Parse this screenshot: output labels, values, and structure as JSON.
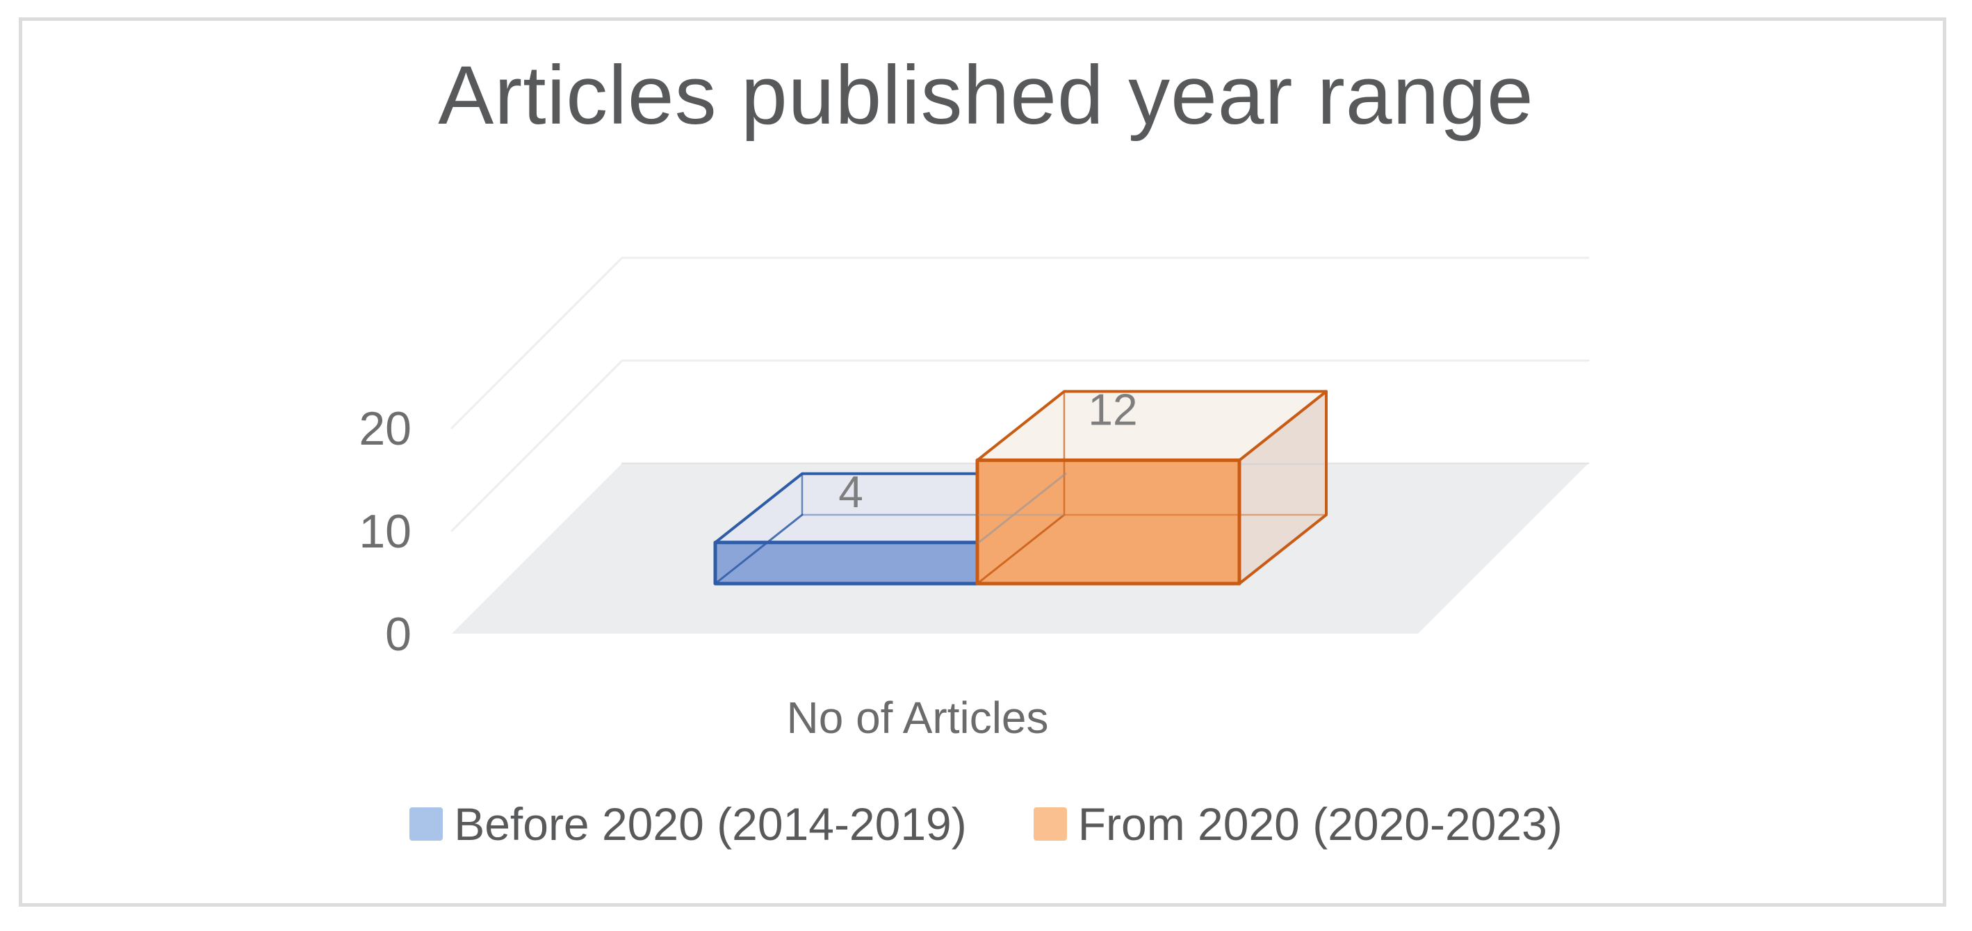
{
  "title": "Articles published year range",
  "chart_data": {
    "type": "bar",
    "projection": "3d",
    "title": "Articles published year range",
    "categories": [
      "No of Articles"
    ],
    "series": [
      {
        "name": "Before 2020 (2014-2019)",
        "values": [
          4
        ],
        "front_color": "#8CA5D9",
        "top_color": "#E5E8F0",
        "edge_color": "#2E5CA6",
        "swatch_color": "#A9C3E9"
      },
      {
        "name": "From 2020 (2020-2023)",
        "values": [
          12
        ],
        "front_color": "#F5A86D",
        "top_color": "#F8F2ED",
        "side_color": "#E8DCD4",
        "edge_color": "#C95C14",
        "swatch_color": "#FAC08F"
      }
    ],
    "data_labels": [
      "4",
      "12"
    ],
    "xlabel": "No of Articles",
    "ylabel": "",
    "ylim": [
      0,
      20
    ],
    "yticks": [
      0,
      10,
      20
    ],
    "grid": true,
    "legend_position": "bottom"
  },
  "palette": {
    "floor": "#ECEDEF",
    "gridline": "#EDEEF0",
    "floor_edge": "#E3E4E6",
    "frame_border": "#DBDCDD",
    "title_gray": "#58595A",
    "tick_gray": "#6E6E6E",
    "axis_label_gray": "#6B6B6B",
    "data_label_gray": "#7E7E7E",
    "legend_text_gray": "#58595B"
  }
}
